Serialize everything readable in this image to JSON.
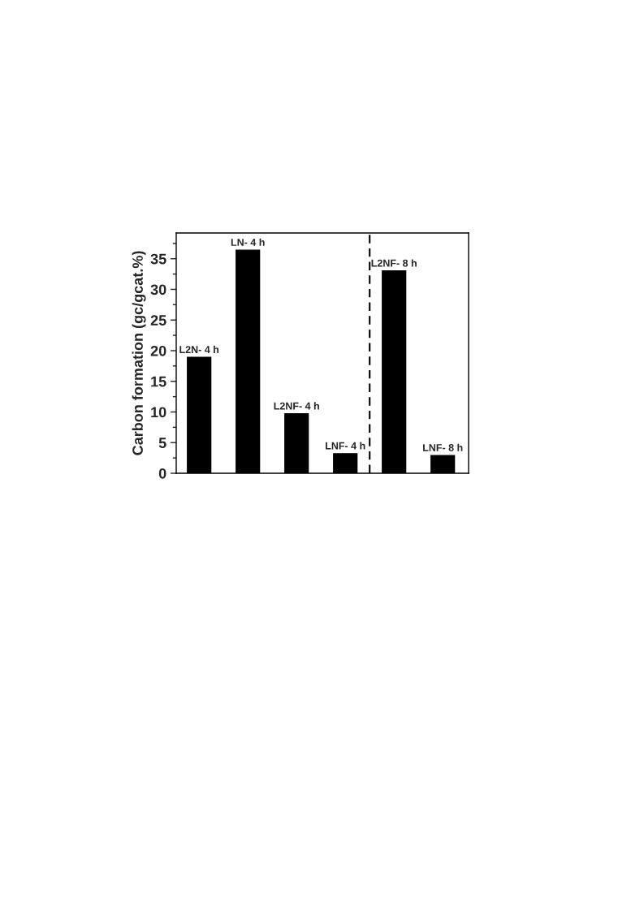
{
  "chart_data": {
    "type": "bar",
    "ylabel": "Carbon formation (gc/gcat.%)",
    "categories": [
      "L2N- 4 h",
      "LN- 4 h",
      "L2NF- 4 h",
      "LNF- 4 h",
      "L2NF- 8 h",
      "LNF- 8 h"
    ],
    "values": [
      18.9,
      36.4,
      9.7,
      3.2,
      33.0,
      2.9
    ],
    "color": "#000000",
    "ylim": [
      0,
      39.2
    ],
    "yticks": [
      0,
      5,
      10,
      15,
      20,
      25,
      30,
      35
    ],
    "tick_labels": "y",
    "grid": false,
    "legend": false
  }
}
